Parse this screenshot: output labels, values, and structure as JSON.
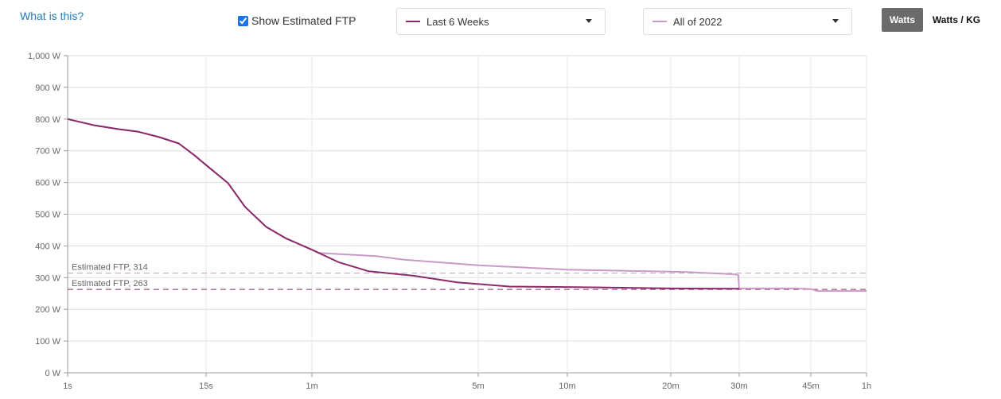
{
  "header": {
    "help_link": "What is this?",
    "show_ftp_label": "Show Estimated FTP",
    "show_ftp_checked": true,
    "range1": {
      "label": "Last 6 Weeks",
      "color": "#8b2a6b"
    },
    "range2": {
      "label": "All of 2022",
      "color": "#c99ac6"
    },
    "units": {
      "watts": "Watts",
      "watts_kg": "Watts / KG",
      "selected": "Watts"
    }
  },
  "chart_data": {
    "type": "line",
    "xscale": "log-custom",
    "xticks": [
      {
        "label": "1s",
        "value": 1
      },
      {
        "label": "15s",
        "value": 15
      },
      {
        "label": "1m",
        "value": 60
      },
      {
        "label": "5m",
        "value": 300
      },
      {
        "label": "10m",
        "value": 600
      },
      {
        "label": "20m",
        "value": 1200
      },
      {
        "label": "30m",
        "value": 1800
      },
      {
        "label": "45m",
        "value": 2700
      },
      {
        "label": "1h",
        "value": 3600
      }
    ],
    "yticks": [
      {
        "label": "0 W",
        "value": 0
      },
      {
        "label": "100 W",
        "value": 100
      },
      {
        "label": "200 W",
        "value": 200
      },
      {
        "label": "300 W",
        "value": 300
      },
      {
        "label": "400 W",
        "value": 400
      },
      {
        "label": "500 W",
        "value": 500
      },
      {
        "label": "600 W",
        "value": 600
      },
      {
        "label": "700 W",
        "value": 700
      },
      {
        "label": "800 W",
        "value": 800
      },
      {
        "label": "900 W",
        "value": 900
      },
      {
        "label": "1,000 W",
        "value": 1000
      }
    ],
    "ylim": [
      0,
      1000
    ],
    "xlim": [
      1,
      3600
    ],
    "grid": true,
    "series": [
      {
        "name": "All of 2022",
        "color": "#c99ac6",
        "points": [
          [
            1,
            800
          ],
          [
            1.7,
            780
          ],
          [
            2.75,
            768
          ],
          [
            4,
            760
          ],
          [
            6,
            743
          ],
          [
            8.8,
            723
          ],
          [
            12,
            685
          ],
          [
            15,
            655
          ],
          [
            20,
            598
          ],
          [
            25,
            523
          ],
          [
            33,
            460
          ],
          [
            43,
            423
          ],
          [
            60,
            388
          ],
          [
            64,
            378
          ],
          [
            112,
            368
          ],
          [
            145,
            357
          ],
          [
            300,
            339
          ],
          [
            600,
            325
          ],
          [
            1300,
            318
          ],
          [
            1765,
            310
          ],
          [
            1790,
            308
          ],
          [
            1800,
            266
          ],
          [
            2478,
            266
          ],
          [
            2700,
            264
          ],
          [
            2790,
            258
          ],
          [
            3600,
            258
          ]
        ]
      },
      {
        "name": "Last 6 Weeks",
        "color": "#8b2a6b",
        "points": [
          [
            1,
            800
          ],
          [
            1.7,
            780
          ],
          [
            2.75,
            768
          ],
          [
            4,
            760
          ],
          [
            6,
            743
          ],
          [
            8.8,
            723
          ],
          [
            12,
            685
          ],
          [
            15,
            655
          ],
          [
            20,
            598
          ],
          [
            25,
            523
          ],
          [
            33,
            460
          ],
          [
            43,
            423
          ],
          [
            60,
            388
          ],
          [
            78,
            348
          ],
          [
            104,
            320
          ],
          [
            160,
            306
          ],
          [
            245,
            285
          ],
          [
            382,
            272
          ],
          [
            638,
            270
          ],
          [
            1211,
            266
          ],
          [
            1800,
            265
          ]
        ]
      }
    ],
    "annotations": [
      {
        "label": "Estimated FTP, 314",
        "value": 314,
        "color": "#c99ac6"
      },
      {
        "label": "Estimated FTP, 263",
        "value": 263,
        "color": "#8b2a6b"
      }
    ]
  }
}
